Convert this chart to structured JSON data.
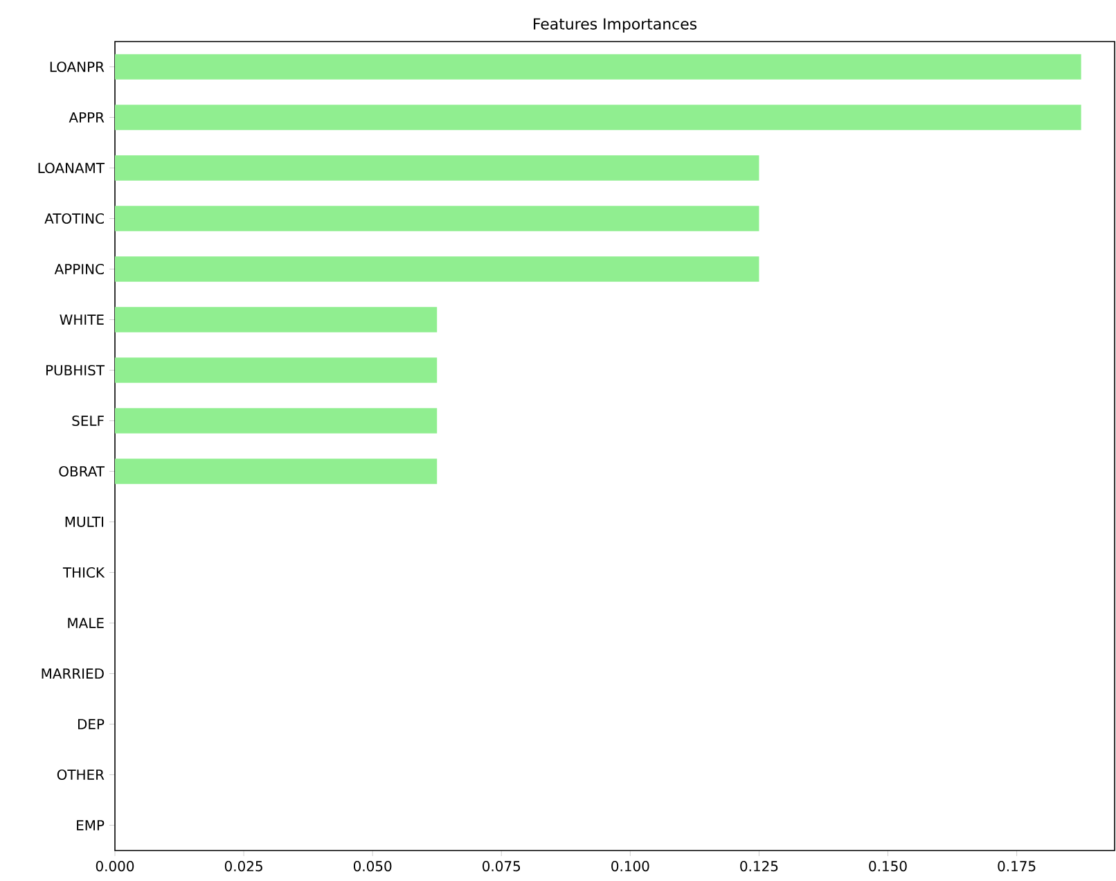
{
  "chart_data": {
    "type": "bar",
    "orientation": "horizontal",
    "title": "Features Importances",
    "categories": [
      "LOANPR",
      "APPR",
      "LOANAMT",
      "ATOTINC",
      "APPINC",
      "WHITE",
      "PUBHIST",
      "SELF",
      "OBRAT",
      "MULTI",
      "THICK",
      "MALE",
      "MARRIED",
      "DEP",
      "OTHER",
      "EMP"
    ],
    "values": [
      0.1875,
      0.1875,
      0.125,
      0.125,
      0.125,
      0.0625,
      0.0625,
      0.0625,
      0.0625,
      0,
      0,
      0,
      0,
      0,
      0,
      0
    ],
    "color": "#90ee90",
    "xlim": [
      0,
      0.194
    ],
    "xticks": [
      {
        "value": 0,
        "label": "0.000"
      },
      {
        "value": 0.025,
        "label": "0.025"
      },
      {
        "value": 0.05,
        "label": "0.050"
      },
      {
        "value": 0.075,
        "label": "0.075"
      },
      {
        "value": 0.1,
        "label": "0.100"
      },
      {
        "value": 0.125,
        "label": "0.125"
      },
      {
        "value": 0.15,
        "label": "0.150"
      },
      {
        "value": 0.175,
        "label": "0.175"
      }
    ]
  }
}
